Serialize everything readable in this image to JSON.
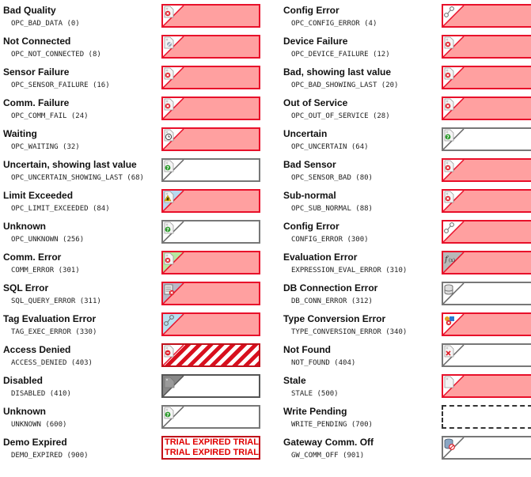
{
  "left": [
    {
      "name": "Bad Quality",
      "code": "OPC_BAD_DATA (0)",
      "style": "bad",
      "icon": "bad-tag-icon"
    },
    {
      "name": "Not Connected",
      "code": "OPC_NOT_CONNECTED (8)",
      "style": "bad",
      "icon": "not-connected-tag-icon"
    },
    {
      "name": "Sensor Failure",
      "code": "OPC_SENSOR_FAILURE (16)",
      "style": "bad",
      "icon": "bad-tag-icon"
    },
    {
      "name": "Comm. Failure",
      "code": "OPC_COMM_FAIL (24)",
      "style": "bad",
      "icon": "bad-tag-icon"
    },
    {
      "name": "Waiting",
      "code": "OPC_WAITING (32)",
      "style": "bad",
      "icon": "clock-tag-icon"
    },
    {
      "name": "Uncertain, showing last value",
      "code": "OPC_UNCERTAIN_SHOWING_LAST (68)",
      "style": "uncertain",
      "icon": "question-tag-icon"
    },
    {
      "name": "Limit Exceeded",
      "code": "OPC_LIMIT_EXCEEDED (84)",
      "style": "bad",
      "icon": "warning-tag-icon"
    },
    {
      "name": "Unknown",
      "code": "OPC_UNKNOWN (256)",
      "style": "uncertain",
      "icon": "question-tag-icon"
    },
    {
      "name": "Comm. Error",
      "code": "COMM_ERROR (301)",
      "style": "bad",
      "icon": "comm-error-tag-icon"
    },
    {
      "name": "SQL Error",
      "code": "SQL_QUERY_ERROR (311)",
      "style": "bad",
      "icon": "sql-error-icon"
    },
    {
      "name": "Tag Evaluation Error",
      "code": "TAG_EXEC_ERROR (330)",
      "style": "bad",
      "icon": "tag-eval-error-icon"
    },
    {
      "name": "Access Denied",
      "code": "ACCESS_DENIED (403)",
      "style": "hatch",
      "icon": "access-denied-icon"
    },
    {
      "name": "Disabled",
      "code": "DISABLED (410)",
      "style": "disabled",
      "icon": "disabled-tag-icon"
    },
    {
      "name": "Unknown",
      "code": "UNKNOWN (600)",
      "style": "uncertain",
      "icon": "question-tag-icon"
    },
    {
      "name": "Demo Expired",
      "code": "DEMO_EXPIRED (900)",
      "style": "demo",
      "icon": ""
    }
  ],
  "right": [
    {
      "name": "Config Error",
      "code": "OPC_CONFIG_ERROR (4)",
      "style": "bad",
      "icon": "config-error-icon"
    },
    {
      "name": "Device Failure",
      "code": "OPC_DEVICE_FAILURE (12)",
      "style": "bad",
      "icon": "bad-tag-icon"
    },
    {
      "name": "Bad, showing last value",
      "code": "OPC_BAD_SHOWING_LAST (20)",
      "style": "bad",
      "icon": "bad-tag-icon"
    },
    {
      "name": "Out of Service",
      "code": "OPC_OUT_OF_SERVICE (28)",
      "style": "bad",
      "icon": "bad-tag-icon"
    },
    {
      "name": "Uncertain",
      "code": "OPC_UNCERTAIN (64)",
      "style": "uncertain",
      "icon": "question-tag-icon"
    },
    {
      "name": "Bad Sensor",
      "code": "OPC_SENSOR_BAD (80)",
      "style": "bad",
      "icon": "bad-tag-icon"
    },
    {
      "name": "Sub-normal",
      "code": "OPC_SUB_NORMAL (88)",
      "style": "bad",
      "icon": "bad-tag-icon"
    },
    {
      "name": "Config Error",
      "code": "CONFIG_ERROR (300)",
      "style": "bad",
      "icon": "config-error-icon"
    },
    {
      "name": "Evaluation Error",
      "code": "EXPRESSION_EVAL_ERROR (310)",
      "style": "bad",
      "icon": "function-error-icon"
    },
    {
      "name": "DB Connection Error",
      "code": "DB_CONN_ERROR (312)",
      "style": "uncertain",
      "icon": "database-tag-icon"
    },
    {
      "name": "Type Conversion Error",
      "code": "TYPE_CONVERSION_ERROR (340)",
      "style": "bad",
      "icon": "type-conversion-icon"
    },
    {
      "name": "Not Found",
      "code": "NOT_FOUND (404)",
      "style": "uncertain",
      "icon": "not-found-tag-icon"
    },
    {
      "name": "Stale",
      "code": "STALE (500)",
      "style": "bad",
      "icon": "stale-tag-icon"
    },
    {
      "name": "Write Pending",
      "code": "WRITE_PENDING (700)",
      "style": "pending",
      "icon": ""
    },
    {
      "name": "Gateway Comm. Off",
      "code": "GW_COMM_OFF (901)",
      "style": "uncertain",
      "icon": "gateway-off-icon"
    }
  ],
  "demo_text": {
    "line1": "TRIAL EXPIRED TRIAL EXPIRED",
    "line2": "TRIAL EXPIRED TRIAL EXPIRED"
  },
  "colors": {
    "bad_fill": "#ffa0a0",
    "bad_border": "#e8102a",
    "uncertain_border": "#777777",
    "trial_text": "#e00000"
  }
}
